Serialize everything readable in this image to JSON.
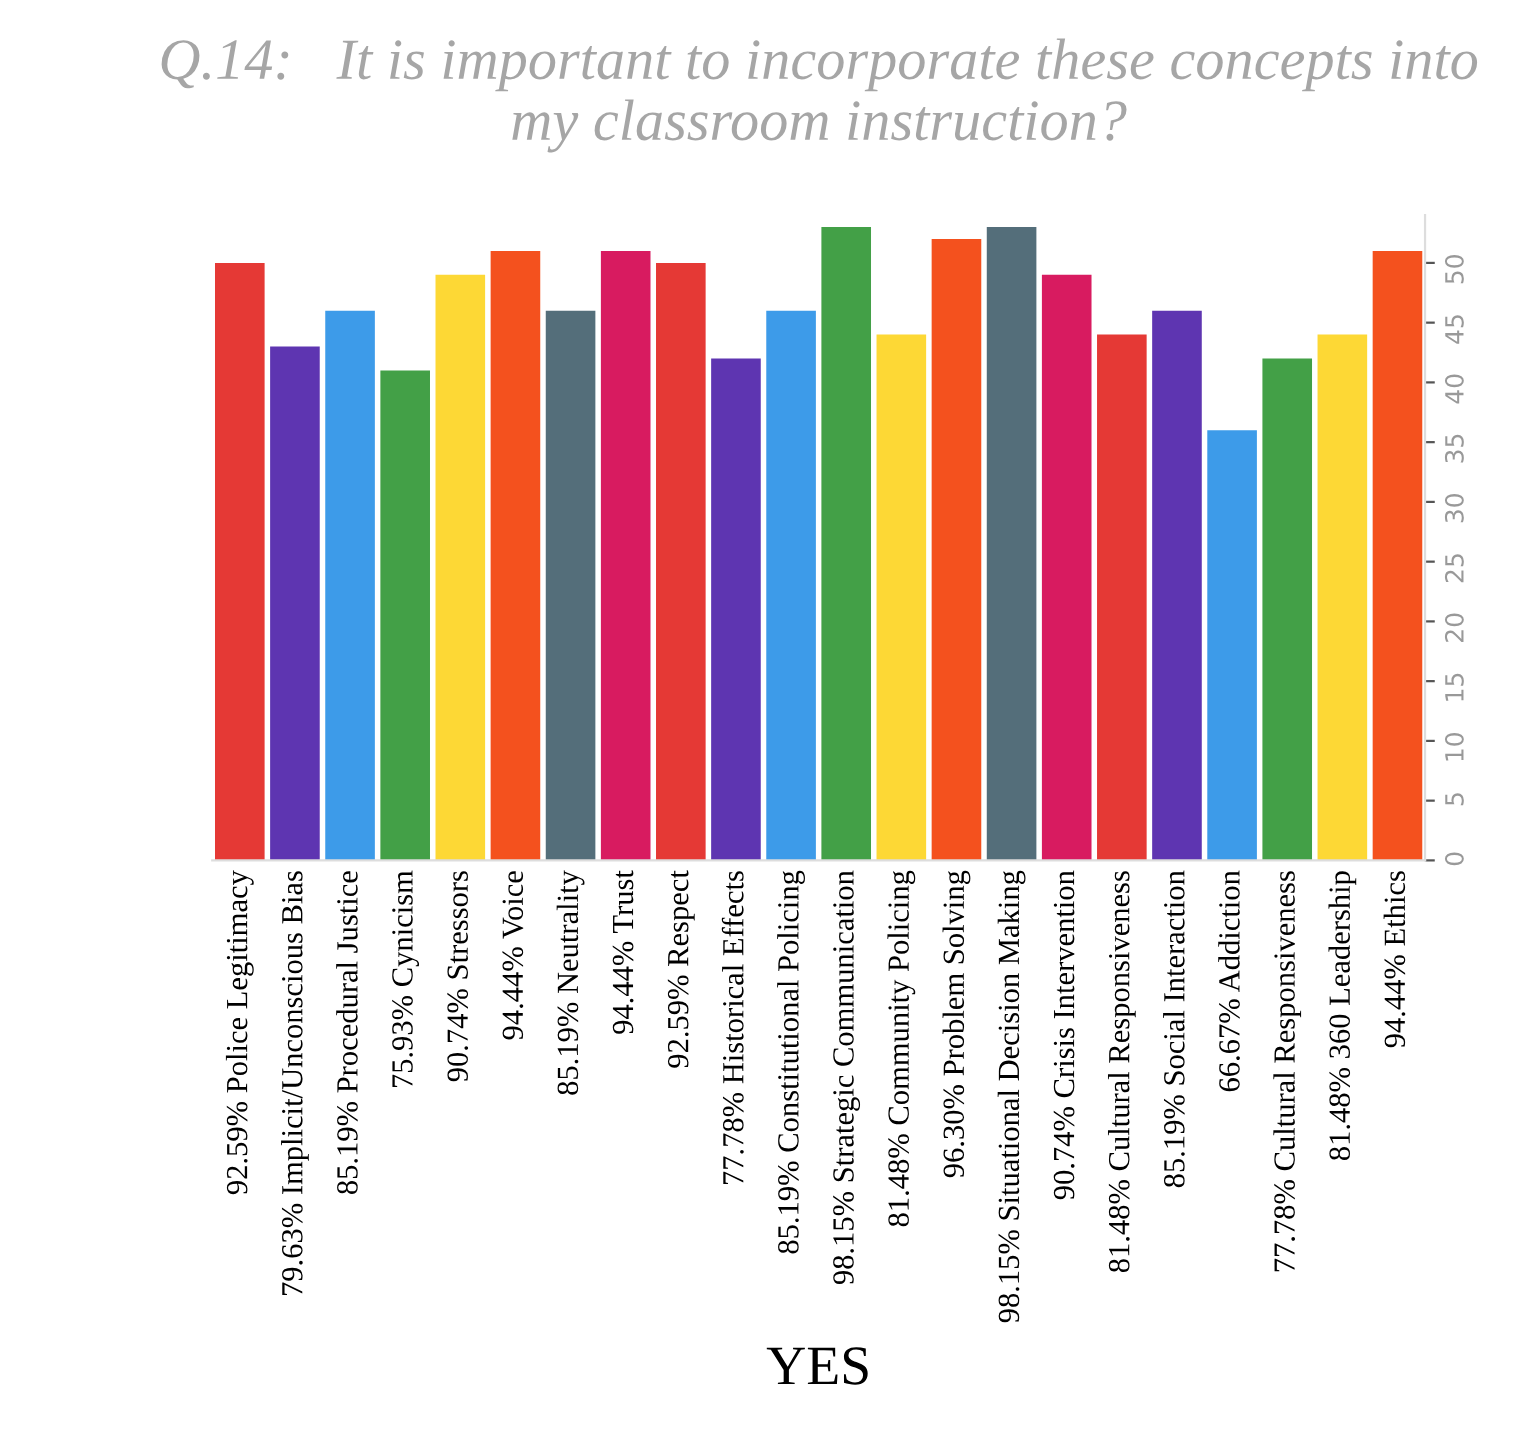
{
  "chart_data": {
    "type": "bar",
    "title": "Q.14:   It is important to incorporate these concepts into my classroom instruction?",
    "xlabel": "YES",
    "categories": [
      "92.59% Police Legitimacy",
      "79.63% Implicit/Unconscious Bias",
      "85.19% Procedural Justice",
      "75.93% Cynicism",
      "90.74% Stressors",
      "94.44% Voice",
      "85.19% Neutrality",
      "94.44% Trust",
      "92.59% Respect",
      "77.78% Historical Effects",
      "85.19% Constitutional Policing",
      "98.15% Strategic Communication",
      "81.48% Community Policing",
      "96.30% Problem Solving",
      "98.15% Situational Decision Making",
      "90.74% Crisis Intervention",
      "81.48% Cultural Responsiveness",
      "85.19% Social Interaction",
      "66.67% Addiction",
      "77.78% Cultural Responsiveness",
      "81.48% 360 Leadership",
      "94.44% Ethics"
    ],
    "values": [
      50,
      43,
      46,
      41,
      49,
      51,
      46,
      51,
      50,
      42,
      46,
      53,
      44,
      52,
      53,
      49,
      44,
      46,
      36,
      42,
      44,
      51
    ],
    "colors": [
      "#e53935",
      "#5e35b1",
      "#3d9be9",
      "#43a047",
      "#fdd835",
      "#f4511e",
      "#546e7a",
      "#d81b60",
      "#e53935",
      "#5e35b1",
      "#3d9be9",
      "#43a047",
      "#fdd835",
      "#f4511e",
      "#546e7a",
      "#d81b60",
      "#e53935",
      "#5e35b1",
      "#3d9be9",
      "#43a047",
      "#fdd835",
      "#f4511e"
    ],
    "ylim": [
      0,
      54
    ],
    "yticks": [
      0,
      5,
      10,
      15,
      20,
      25,
      30,
      35,
      40,
      45,
      50
    ],
    "grid": false
  }
}
